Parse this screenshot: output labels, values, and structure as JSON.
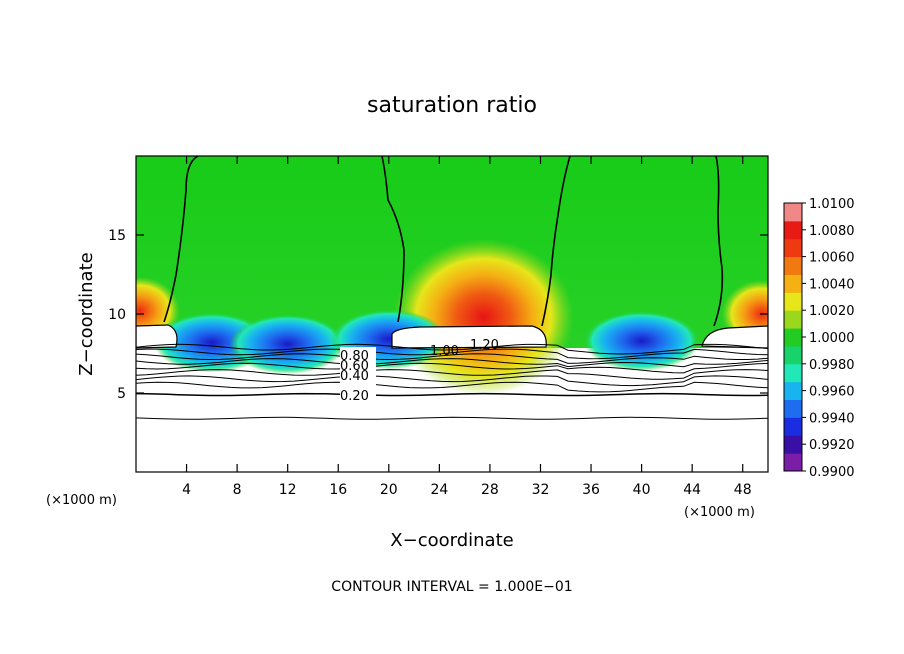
{
  "chart_data": {
    "type": "heatmap",
    "title": "saturation ratio",
    "xlabel": "X−coordinate",
    "ylabel": "Z−coordinate",
    "x_unit_left": "(×1000 m)",
    "x_unit_right": "(×1000 m)",
    "note": "CONTOUR INTERVAL = 1.000E−01",
    "xlim": [
      0,
      50
    ],
    "ylim": [
      0,
      20
    ],
    "xticks": [
      4,
      8,
      12,
      16,
      20,
      24,
      28,
      32,
      36,
      40,
      44,
      48
    ],
    "xtick_labels": [
      "4",
      "8",
      "12",
      "16",
      "20",
      "24",
      "28",
      "32",
      "36",
      "40",
      "44",
      "48"
    ],
    "yticks": [
      5,
      10,
      15
    ],
    "ytick_labels": [
      "5",
      "10",
      "15"
    ],
    "colorbar": {
      "min": 0.99,
      "max": 1.01,
      "labels": [
        "1.0100",
        "1.0080",
        "1.0060",
        "1.0040",
        "1.0020",
        "1.0000",
        "0.9980",
        "0.9960",
        "0.9940",
        "0.9920",
        "0.9900"
      ],
      "colors": [
        "#7a1ea8",
        "#3a0fa6",
        "#1b2de0",
        "#1e6cf0",
        "#18b4f0",
        "#22e8b8",
        "#18d26a",
        "#22cc22",
        "#9ad81e",
        "#e6e61a",
        "#f5b014",
        "#f07a10",
        "#ee3a10",
        "#e81a14",
        "#f08888"
      ]
    },
    "contour_labels": [
      "0.20",
      "0.40",
      "0.60",
      "0.80",
      "1.00",
      "1.20"
    ],
    "hot_spots": [
      {
        "x": 27.5,
        "z": 9.8,
        "value": 1.008
      },
      {
        "x": 0.3,
        "z": 10.2,
        "value": 1.007
      },
      {
        "x": 49.5,
        "z": 10.0,
        "value": 1.006
      }
    ],
    "dry_spots": [
      {
        "x": 6,
        "z": 8.2,
        "value": 0.992
      },
      {
        "x": 12,
        "z": 8.1,
        "value": 0.9925
      },
      {
        "x": 40,
        "z": 8.3,
        "value": 0.9915
      },
      {
        "x": 20,
        "z": 8.4,
        "value": 0.994
      }
    ]
  }
}
